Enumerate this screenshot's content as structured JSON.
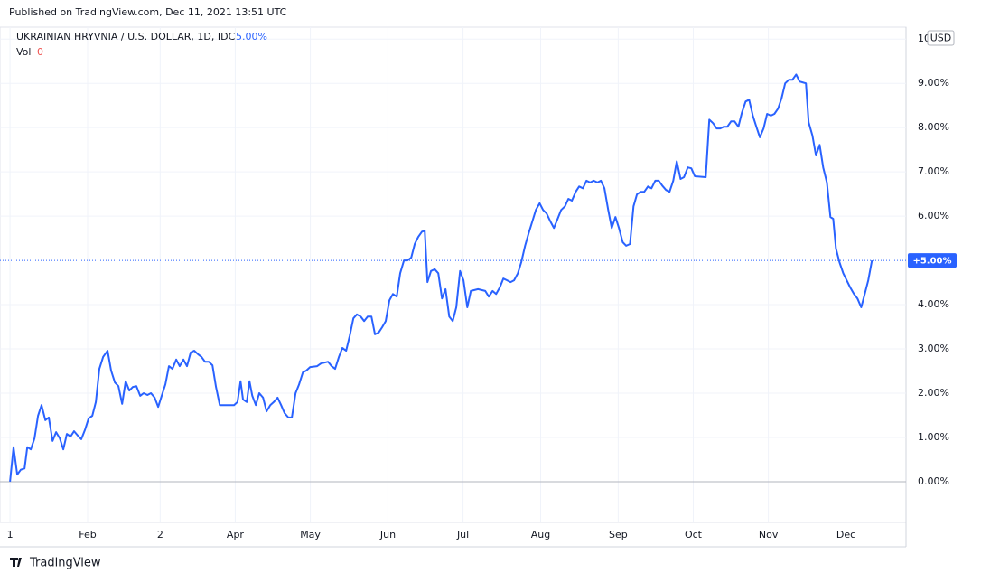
{
  "header": {
    "published": "Published on TradingView.com, Dec 11, 2021 13:51 UTC"
  },
  "footer": {
    "brand": "TradingView"
  },
  "chart_data": {
    "type": "line",
    "title": "UKRAINIAN HRYVNIA / U.S. DOLLAR, 1D, IDC",
    "change_label": "5.00%",
    "volume_label": "Vol",
    "volume_value": 0,
    "currency": "USD",
    "last_label": "+5.00%",
    "color": "#2962ff",
    "grid": true,
    "x": [
      0,
      1.4,
      2.9,
      4.3,
      5.8,
      6.9,
      8.3,
      9.8,
      11.2,
      12.6,
      14.1,
      15.5,
      17,
      18.4,
      19.9,
      21.3,
      22.7,
      24.2,
      25.6,
      27.1,
      28.5,
      30,
      31.4,
      32.9,
      34.3,
      35.7,
      37.2,
      39,
      40.4,
      41.9,
      43.3,
      44.8,
      46.2,
      47.7,
      49.1,
      50.5,
      52,
      53.4,
      54.9,
      56.3,
      57.8,
      59.2,
      60.6,
      62.1,
      63.5,
      64.9,
      66.4,
      67.8,
      69.3,
      70.7,
      72.2,
      73.6,
      75.1,
      76.5,
      77.9,
      79.4,
      80.9,
      82.3,
      83.8,
      86.6,
      89.5,
      90.9,
      92.1,
      93.1,
      94.6,
      95.7,
      96.8,
      98.2,
      99.6,
      101.1,
      102.5,
      104,
      105.4,
      106.9,
      108.3,
      109.7,
      111.2,
      112.6,
      114.1,
      115.5,
      117,
      118.4,
      119.9,
      122.7,
      124.2,
      127.1,
      128.5,
      129.9,
      131.4,
      132.8,
      134.3,
      135.7,
      137.2,
      138.6,
      140.1,
      141.5,
      142.9,
      144.4,
      145.8,
      147.3,
      148.7,
      150.1,
      151.6,
      153,
      154.5,
      155.9,
      157.4,
      158.8,
      160.3,
      161.7,
      163.1,
      164.6,
      165.7,
      166.8,
      168.2,
      169.7,
      171.1,
      172.6,
      174,
      175.5,
      176.9,
      178.3,
      179.8,
      181.2,
      182.7,
      184.1,
      187,
      189.9,
      191.3,
      192.8,
      194.2,
      195.7,
      197.1,
      198.6,
      200,
      201.4,
      202.9,
      204.3,
      205.8,
      207.2,
      208.7,
      210.1,
      211.6,
      213,
      214.4,
      215.9,
      217.3,
      218.8,
      220.2,
      221.7,
      223.1,
      224.5,
      226,
      227.4,
      228.9,
      230.3,
      231.8,
      233.2,
      234.7,
      236.1,
      237.5,
      239,
      240.4,
      241.9,
      243.3,
      244.8,
      246.2,
      247.7,
      249.1,
      250.5,
      252,
      253.4,
      254.9,
      256.3,
      257.8,
      259.2,
      260.6,
      262.1,
      263.5,
      265,
      266.4,
      267.9,
      269.3,
      270.8,
      272.2,
      273.6,
      278,
      279.4,
      280.9,
      282.3,
      283.8,
      285.2,
      286.6,
      288.1,
      289.5,
      291,
      292.4,
      293.9,
      295.3,
      296.8,
      298.2,
      299.6,
      301.1,
      302.5,
      304,
      305.4,
      306.9,
      308.3,
      309.7,
      311.2,
      312.6,
      314.1,
      315.5,
      318,
      319.1,
      320.6,
      322,
      323.5,
      324.9,
      326.4,
      327.8,
      328.9,
      330,
      331.4,
      332.9,
      334.3,
      335.7,
      337.2,
      338.6,
      340.1,
      341.5,
      342.9,
      344.4
    ],
    "values": [
      0,
      0.78,
      0.16,
      0.27,
      0.3,
      0.78,
      0.73,
      0.98,
      1.49,
      1.73,
      1.39,
      1.45,
      0.92,
      1.12,
      0.98,
      0.73,
      1.08,
      1.02,
      1.14,
      1.04,
      0.96,
      1.18,
      1.43,
      1.49,
      1.8,
      2.55,
      2.82,
      2.96,
      2.51,
      2.24,
      2.16,
      1.76,
      2.27,
      2.06,
      2.14,
      2.16,
      1.94,
      2,
      1.96,
      2,
      1.9,
      1.69,
      1.94,
      2.2,
      2.61,
      2.55,
      2.76,
      2.61,
      2.76,
      2.61,
      2.92,
      2.96,
      2.88,
      2.82,
      2.71,
      2.71,
      2.63,
      2.14,
      1.73,
      1.73,
      1.73,
      1.8,
      2.27,
      1.86,
      1.8,
      2.27,
      1.94,
      1.73,
      2,
      1.9,
      1.59,
      1.73,
      1.8,
      1.9,
      1.73,
      1.55,
      1.45,
      1.45,
      2,
      2.2,
      2.47,
      2.51,
      2.59,
      2.61,
      2.67,
      2.71,
      2.61,
      2.55,
      2.82,
      3.02,
      2.96,
      3.29,
      3.69,
      3.78,
      3.73,
      3.63,
      3.73,
      3.73,
      3.33,
      3.37,
      3.49,
      3.63,
      4.1,
      4.24,
      4.18,
      4.71,
      5,
      5,
      5.06,
      5.37,
      5.53,
      5.65,
      5.67,
      4.51,
      4.76,
      4.8,
      4.71,
      4.14,
      4.35,
      3.73,
      3.63,
      3.94,
      4.76,
      4.55,
      3.94,
      4.31,
      4.35,
      4.31,
      4.18,
      4.31,
      4.24,
      4.39,
      4.59,
      4.55,
      4.51,
      4.55,
      4.71,
      4.96,
      5.33,
      5.61,
      5.88,
      6.14,
      6.29,
      6.14,
      6.06,
      5.88,
      5.73,
      5.94,
      6.14,
      6.22,
      6.39,
      6.35,
      6.55,
      6.67,
      6.63,
      6.8,
      6.76,
      6.8,
      6.76,
      6.8,
      6.63,
      6.14,
      5.73,
      5.98,
      5.73,
      5.41,
      5.33,
      5.37,
      6.22,
      6.49,
      6.55,
      6.55,
      6.67,
      6.63,
      6.8,
      6.8,
      6.69,
      6.59,
      6.55,
      6.8,
      7.24,
      6.84,
      6.88,
      7.1,
      7.08,
      6.9,
      6.88,
      8.18,
      8.1,
      7.98,
      7.98,
      8.02,
      8.02,
      8.14,
      8.14,
      8.02,
      8.33,
      8.59,
      8.63,
      8.27,
      8.02,
      7.78,
      7.98,
      8.31,
      8.27,
      8.31,
      8.43,
      8.67,
      9,
      9.08,
      9.08,
      9.2,
      9.04,
      9,
      8.12,
      7.82,
      7.37,
      7.61,
      7.1,
      6.76,
      5.98,
      5.94,
      5.27,
      4.96,
      4.71,
      4.55,
      4.39,
      4.24,
      4.14,
      3.94,
      4.24,
      4.55,
      5
    ],
    "xlim": [
      -4,
      358
    ],
    "xticks": [
      {
        "value": 0,
        "label": "1"
      },
      {
        "value": 31,
        "label": "Feb"
      },
      {
        "value": 60,
        "label": "2"
      },
      {
        "value": 90,
        "label": "Apr"
      },
      {
        "value": 120,
        "label": "May"
      },
      {
        "value": 151,
        "label": "Jun"
      },
      {
        "value": 181,
        "label": "Jul"
      },
      {
        "value": 212,
        "label": "Aug"
      },
      {
        "value": 243,
        "label": "Sep"
      },
      {
        "value": 273,
        "label": "Oct"
      },
      {
        "value": 303,
        "label": "Nov"
      },
      {
        "value": 334,
        "label": "Dec"
      }
    ],
    "ylim": [
      -0.92,
      10.27
    ],
    "yticks": [
      {
        "value": 0,
        "label": "0.00%"
      },
      {
        "value": 1,
        "label": "1.00%"
      },
      {
        "value": 2,
        "label": "2.00%"
      },
      {
        "value": 3,
        "label": "3.00%"
      },
      {
        "value": 4,
        "label": "4.00%"
      },
      {
        "value": 6,
        "label": "6.00%"
      },
      {
        "value": 7,
        "label": "7.00%"
      },
      {
        "value": 8,
        "label": "8.00%"
      },
      {
        "value": 9,
        "label": "9.00%"
      },
      10
    ]
  }
}
